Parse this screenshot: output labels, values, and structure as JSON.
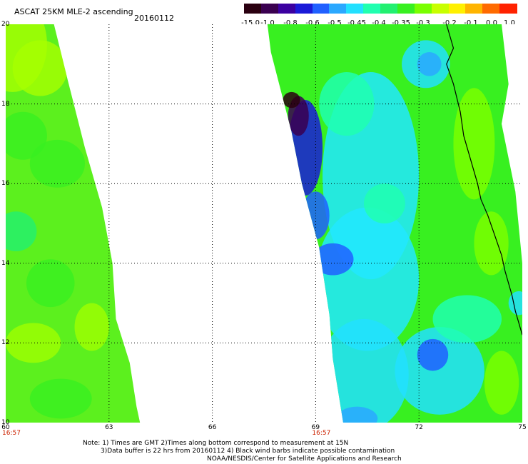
{
  "header": {
    "title": "ASCAT 25KM MLE-2 ascending",
    "date": "20160112"
  },
  "colorbar": {
    "colors": [
      "#2a0010",
      "#3a0050",
      "#3b00a0",
      "#1a1ad8",
      "#2060ff",
      "#2aa8ff",
      "#22e0ff",
      "#20ffb0",
      "#22f070",
      "#38f020",
      "#7aff00",
      "#c8ff00",
      "#fff000",
      "#ffb400",
      "#ff6a00",
      "#ff2200"
    ],
    "labels": [
      "-15.0",
      "-1.0",
      "-0.8",
      "-0.6",
      "-0.5",
      "-0.45",
      "-0.4",
      "-0.35",
      "-0.3",
      "-0.2",
      "-0.1",
      "0.0",
      "1.0"
    ]
  },
  "axes": {
    "y_ticks": [
      "20",
      "18",
      "16",
      "14",
      "12",
      "10"
    ],
    "x_ticks": [
      "60",
      "63",
      "66",
      "69",
      "72",
      "75"
    ],
    "x_ticks_data": [
      60,
      63,
      66,
      69,
      72,
      75
    ],
    "y_ticks_data": [
      20,
      18,
      16,
      14,
      12,
      10
    ],
    "lon_range": [
      60,
      75
    ],
    "lat_range": [
      10,
      20
    ],
    "pass_times": [
      {
        "lon": 60,
        "time": "16:57"
      },
      {
        "lon": 69,
        "time": "16:57"
      }
    ]
  },
  "notes": {
    "line1": "Note: 1) Times are GMT 2)Times along bottom correspond to measurement at 15N",
    "line2": "3)Data buffer is 22 hrs from 20160112 4) Black wind barbs indicate possible contamination",
    "line3": "NOAA/NESDIS/Center for Satellite Applications and Research"
  }
}
